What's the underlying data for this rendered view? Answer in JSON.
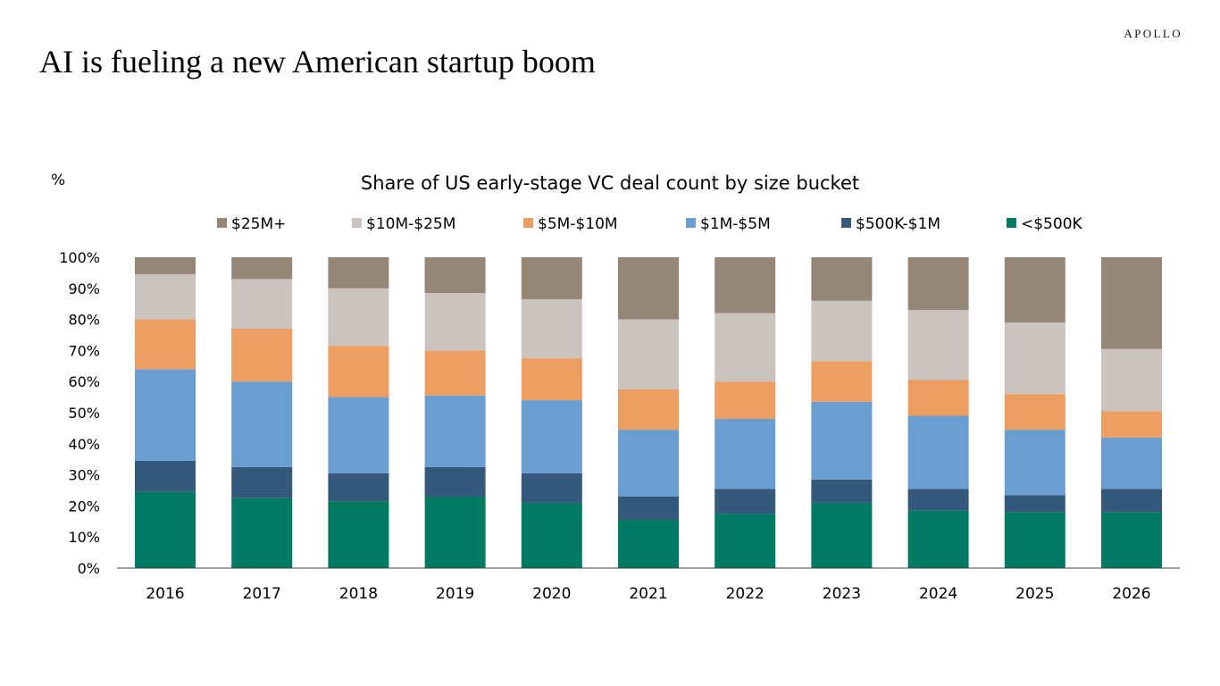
{
  "brand": "APOLLO",
  "headline": "AI is fueling a new American startup boom",
  "chart_data": {
    "type": "bar",
    "stacked": true,
    "title": "Share of US early-stage VC deal count by size bucket",
    "ylabel": "%",
    "xlabel": "",
    "ylim": [
      0,
      100
    ],
    "yticks": [
      "0%",
      "10%",
      "20%",
      "30%",
      "40%",
      "50%",
      "60%",
      "70%",
      "80%",
      "90%",
      "100%"
    ],
    "grid": false,
    "legend_position": "top",
    "categories": [
      "2016",
      "2017",
      "2018",
      "2019",
      "2020",
      "2021",
      "2022",
      "2023",
      "2024",
      "2025",
      "2026"
    ],
    "series": [
      {
        "name": "<$500K",
        "color": "#007A62",
        "values": [
          24.5,
          22.5,
          21.5,
          23.0,
          21.0,
          15.5,
          17.5,
          21.0,
          18.5,
          18.0,
          18.0
        ]
      },
      {
        "name": "$500K-$1M",
        "color": "#34597B",
        "values": [
          10.0,
          10.0,
          9.0,
          9.5,
          9.5,
          7.5,
          8.0,
          7.5,
          7.0,
          5.5,
          7.5
        ]
      },
      {
        "name": "$1M-$5M",
        "color": "#6A9ED1",
        "values": [
          29.5,
          27.5,
          24.5,
          23.0,
          23.5,
          21.5,
          22.5,
          25.0,
          23.5,
          21.0,
          16.5
        ]
      },
      {
        "name": "$5M-$10M",
        "color": "#EC9D62",
        "values": [
          16.0,
          17.0,
          16.5,
          14.5,
          13.5,
          13.0,
          12.0,
          13.0,
          11.5,
          11.5,
          8.5
        ]
      },
      {
        "name": "$10M-$25M",
        "color": "#CBC3BD",
        "values": [
          14.5,
          16.0,
          18.5,
          18.5,
          19.0,
          22.5,
          22.0,
          19.5,
          22.5,
          23.0,
          20.0
        ]
      },
      {
        "name": "$25M+",
        "color": "#958778",
        "values": [
          5.5,
          7.0,
          10.0,
          11.5,
          13.5,
          20.0,
          18.0,
          14.0,
          17.0,
          21.0,
          29.5
        ]
      }
    ]
  }
}
